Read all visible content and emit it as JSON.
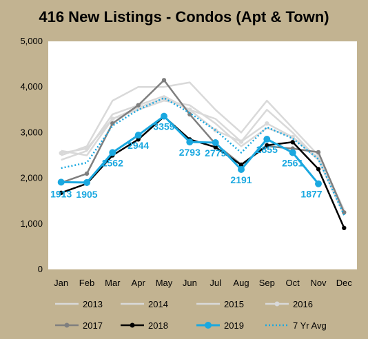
{
  "chart_data": {
    "type": "line",
    "title": "416 New Listings - Condos (Apt & Town)",
    "categories": [
      "Jan",
      "Feb",
      "Mar",
      "Apr",
      "May",
      "Jun",
      "Jul",
      "Aug",
      "Sep",
      "Oct",
      "Nov",
      "Dec"
    ],
    "ylim": [
      0,
      5000
    ],
    "yticks": [
      0,
      1000,
      2000,
      3000,
      4000,
      5000
    ],
    "ytick_labels": [
      "0",
      "1,000",
      "2,000",
      "3,000",
      "4,000",
      "5,000"
    ],
    "grid": false,
    "legend_position": "bottom",
    "series": [
      {
        "name": "2013",
        "color": "#d9d9d9",
        "marker": false,
        "dashed": false,
        "values": [
          2400,
          2600,
          3400,
          3600,
          3800,
          3500,
          3300,
          2800,
          3500,
          3000,
          2400,
          1200
        ]
      },
      {
        "name": "2014",
        "color": "#d9d9d9",
        "marker": false,
        "dashed": false,
        "values": [
          2500,
          2700,
          3700,
          4000,
          4000,
          4100,
          3500,
          3000,
          3700,
          3100,
          2500,
          1300
        ]
      },
      {
        "name": "2015",
        "color": "#d9d9d9",
        "marker": false,
        "dashed": false,
        "values": [
          2600,
          2500,
          3300,
          3500,
          3700,
          3600,
          3200,
          2700,
          3100,
          2900,
          2400,
          1200
        ]
      },
      {
        "name": "2016",
        "color": "#d9d9d9",
        "marker": true,
        "dashed": false,
        "values": [
          2550,
          2650,
          3300,
          3550,
          3750,
          3500,
          3050,
          2800,
          3200,
          2900,
          2450,
          1250
        ]
      },
      {
        "name": "2017",
        "color": "#7f7f7f",
        "marker": true,
        "dashed": false,
        "values": [
          1900,
          2100,
          3200,
          3600,
          4150,
          3400,
          2750,
          2300,
          2700,
          2650,
          2570,
          1250
        ]
      },
      {
        "name": "2018",
        "color": "#000000",
        "marker": true,
        "dashed": false,
        "values": [
          1680,
          1880,
          2500,
          2850,
          3350,
          2850,
          2680,
          2290,
          2720,
          2790,
          2200,
          910
        ]
      },
      {
        "name": "2019",
        "color": "#1aa8e0",
        "marker": true,
        "dashed": false,
        "values": [
          1913,
          1905,
          2562,
          2944,
          3359,
          2793,
          2779,
          2191,
          2855,
          2561,
          1877,
          null
        ],
        "labels": [
          "1913",
          "1905",
          "2562",
          "2944",
          "3359",
          "2793",
          "2779",
          "2191",
          "2855",
          "2561",
          "1877",
          null
        ]
      },
      {
        "name": "7 Yr Avg",
        "color": "#1aa8e0",
        "marker": false,
        "dashed": true,
        "values": [
          2220,
          2340,
          3150,
          3500,
          3760,
          3430,
          3050,
          2560,
          3120,
          2870,
          2420,
          1190
        ]
      }
    ]
  }
}
